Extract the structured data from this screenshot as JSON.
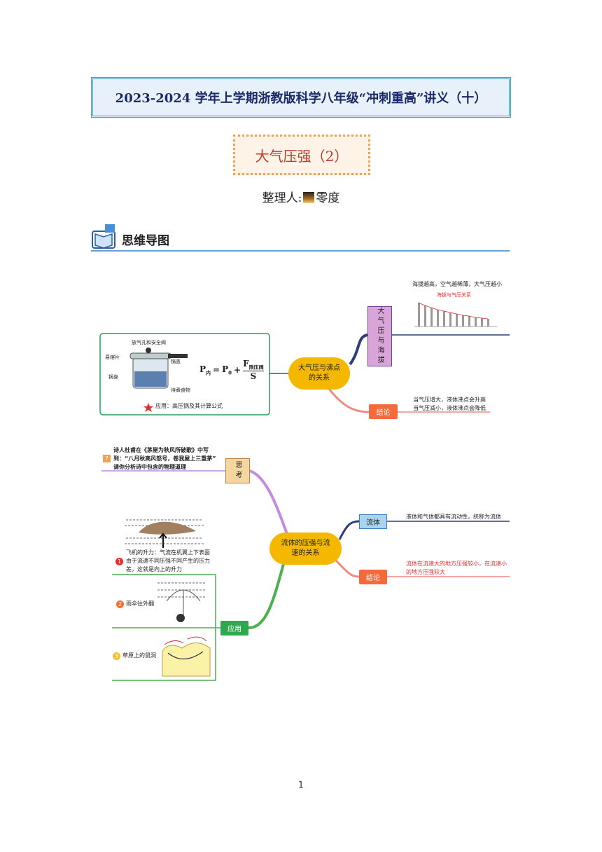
{
  "header": {
    "title": "2023-2024 学年上学期浙教版科学八年级“冲刺重高”讲义（十）",
    "subtitle": "大气压强（2）",
    "author_label": "整理人:",
    "author_name": "零度"
  },
  "section": {
    "title": "思维导图"
  },
  "map1": {
    "center": "大气压与沸点的关系",
    "altitude": {
      "label": "大气压与海拔",
      "note": "海拔越高，空气越稀薄，大气压越小",
      "chart_title": "海拔与气压关系"
    },
    "conclusion": {
      "label": "结论",
      "lines": [
        "当气压增大，液体沸点会升高",
        "当气压减小，液体沸点会降低"
      ]
    },
    "cooker": {
      "parts": [
        "放气孔和安全阀",
        "易熔片",
        "锅盖",
        "锅身",
        "待煮食物"
      ],
      "formula": {
        "lhs": "P",
        "lhs_sub": "内",
        "equals": "=",
        "rhs": "P",
        "rhs_sub": "0",
        "plus": "+",
        "numerator": "F",
        "numerator_sub": "限压阀",
        "denominator": "S"
      },
      "caption": "应用：高压锅及其计算公式"
    }
  },
  "map2": {
    "center": "流体的压强与流速的关系",
    "think": {
      "label": "思考",
      "text": [
        "诗人杜甫在《茅屋为秋风所破歌》中写",
        "到：“八月秋高风怒号，卷我屋上三重茅”",
        "请你分析诗中包含的物理道理"
      ]
    },
    "fluid": {
      "label": "流体",
      "text": "液体和气体都具有流动性，统称为流体"
    },
    "conclusion": {
      "label": "结论",
      "text": [
        "流体在流速大的地方压强较小，在流速小",
        "的地方压强较大"
      ]
    },
    "application": {
      "label": "应用",
      "items": [
        {
          "marker": "1",
          "text": [
            "飞机的升力：气流在机翼上下表面",
            "由于流速不同压强不同产生的压力",
            "差，这就是向上的升力"
          ]
        },
        {
          "marker": "2",
          "text": [
            "雨伞往外翻"
          ]
        },
        {
          "marker": "3",
          "text": [
            "草原上的鼠洞"
          ]
        }
      ]
    }
  },
  "footer": {
    "page": "1"
  }
}
